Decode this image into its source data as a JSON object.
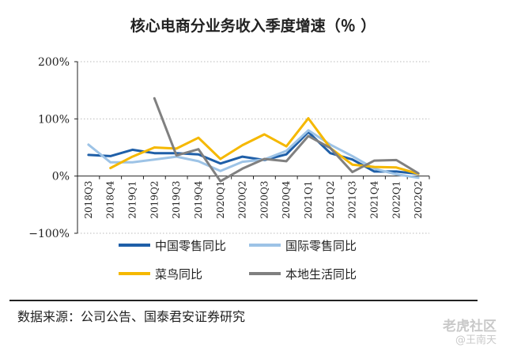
{
  "chart_data": {
    "type": "line",
    "title": "核心电商分业务收入季度增速（％ ）",
    "xlabel": "",
    "ylabel": "",
    "ylim": [
      -100,
      200
    ],
    "yticks": [
      -100,
      0,
      100,
      200
    ],
    "ytick_labels": [
      "−100%",
      "0%",
      "100%",
      "200%"
    ],
    "grid": "y-dotted",
    "legend_position": "bottom",
    "categories": [
      "2018Q3",
      "2018Q4",
      "2019Q1",
      "2019Q2",
      "2019Q3",
      "2019Q4",
      "2020Q1",
      "2020Q2",
      "2020Q3",
      "2020Q4",
      "2021Q1",
      "2021Q2",
      "2021Q3",
      "2021Q4",
      "2022Q1",
      "2022Q2"
    ],
    "series": [
      {
        "name": "中国零售同比",
        "color": "#1f5fa8",
        "values": [
          37,
          35,
          46,
          40,
          40,
          38,
          22,
          34,
          28,
          38,
          77,
          40,
          29,
          8,
          8,
          4
        ]
      },
      {
        "name": "国际零售同比",
        "color": "#9dc3e6",
        "values": [
          55,
          24,
          24,
          29,
          34,
          26,
          9,
          25,
          29,
          44,
          80,
          55,
          35,
          13,
          3,
          -3
        ]
      },
      {
        "name": "菜鸟同比",
        "color": "#f5b800",
        "values": [
          null,
          14,
          34,
          50,
          48,
          67,
          30,
          54,
          73,
          52,
          101,
          49,
          20,
          16,
          15,
          4
        ]
      },
      {
        "name": "本地生活同比",
        "color": "#808080",
        "values": [
          null,
          null,
          null,
          136,
          36,
          47,
          -9,
          13,
          30,
          26,
          70,
          49,
          7,
          27,
          28,
          5
        ]
      }
    ]
  },
  "source_text": "数据来源：公司公告、国泰君安证券研究",
  "watermark": {
    "brand": "老虎社区",
    "author": "@王南天"
  }
}
